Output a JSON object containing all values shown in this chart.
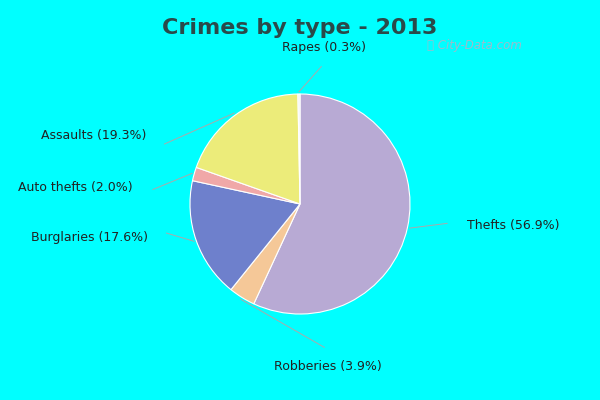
{
  "title": "Crimes by type - 2013",
  "labels": [
    "Thefts",
    "Robberies",
    "Burglaries",
    "Auto thefts",
    "Assaults",
    "Rapes"
  ],
  "values": [
    56.9,
    3.9,
    17.6,
    2.0,
    19.3,
    0.3
  ],
  "pie_colors": [
    "#b8aad4",
    "#f5c898",
    "#6e80cc",
    "#f0a8a8",
    "#ecec7a",
    "#f0f0f0"
  ],
  "label_texts": [
    "Thefts (56.9%)",
    "Robberies (3.9%)",
    "Burglaries (17.6%)",
    "Auto thefts (2.0%)",
    "Assaults (19.3%)",
    "Rapes (0.3%)"
  ],
  "background_color_outer": "#00ffff",
  "background_color_inner": "#cceedd",
  "title_color": "#2a4a4a",
  "title_fontsize": 16,
  "label_fontsize": 9,
  "startangle": 90
}
